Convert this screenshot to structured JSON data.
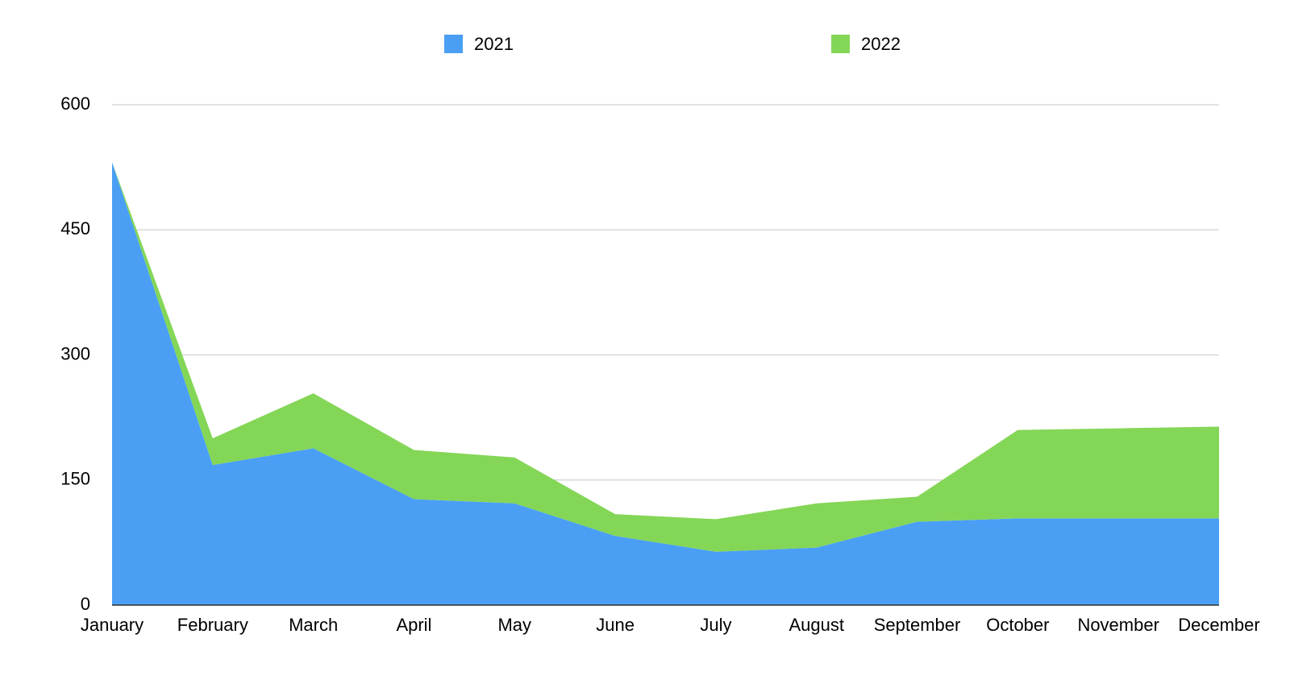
{
  "chart_data": {
    "type": "stacked-area",
    "categories": [
      "January",
      "February",
      "March",
      "April",
      "May",
      "June",
      "July",
      "August",
      "September",
      "October",
      "November",
      "December"
    ],
    "series": [
      {
        "name": "2021",
        "color": "#4a9ff5",
        "values": [
          531,
          168,
          188,
          127,
          122,
          83,
          64,
          69,
          100,
          104,
          104,
          104
        ]
      },
      {
        "name": "2022",
        "color": "#84d657",
        "values": [
          0,
          32,
          66,
          59,
          55,
          26,
          39,
          53,
          30,
          106,
          108,
          110
        ]
      }
    ],
    "ylim": [
      0,
      600
    ],
    "yticks": [
      0,
      150,
      300,
      450,
      600
    ],
    "grid": true,
    "legend": "top"
  }
}
